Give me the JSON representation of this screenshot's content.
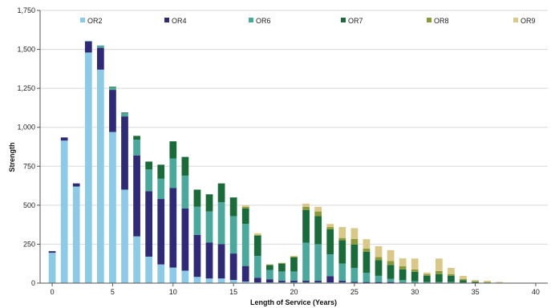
{
  "chart_data": {
    "type": "bar",
    "stacked": true,
    "xlabel": "Length of Service (Years)",
    "ylabel": "Strength",
    "ylim": [
      0,
      1750
    ],
    "xlim": [
      -1,
      41
    ],
    "x_ticks": [
      0,
      5,
      10,
      15,
      20,
      25,
      30,
      35,
      40
    ],
    "y_ticks": [
      0,
      250,
      500,
      750,
      1000,
      1250,
      1500,
      1750
    ],
    "y_tick_labels": [
      "0",
      "250",
      "500",
      "750",
      "1,000",
      "1,250",
      "1,500",
      "1,750"
    ],
    "grid": true,
    "legend_position": "top",
    "categories": [
      0,
      1,
      2,
      3,
      4,
      5,
      6,
      7,
      8,
      9,
      10,
      11,
      12,
      13,
      14,
      15,
      16,
      17,
      18,
      19,
      20,
      21,
      22,
      23,
      24,
      25,
      26,
      27,
      28,
      29,
      30,
      31,
      32,
      33,
      34,
      35,
      36,
      37,
      38,
      39,
      40
    ],
    "series": [
      {
        "name": "OR2",
        "color": "#8ccbe8",
        "values": [
          195,
          915,
          620,
          1480,
          1370,
          970,
          600,
          300,
          170,
          120,
          100,
          80,
          40,
          30,
          30,
          20,
          10,
          5,
          5,
          5,
          5,
          5,
          5,
          5,
          5,
          3,
          2,
          2,
          2,
          1,
          1,
          1,
          1,
          1,
          0,
          0,
          0,
          0,
          0,
          0,
          0
        ]
      },
      {
        "name": "OR4",
        "color": "#2e2a78",
        "values": [
          10,
          20,
          20,
          70,
          140,
          270,
          470,
          520,
          420,
          420,
          510,
          400,
          270,
          230,
          220,
          170,
          100,
          30,
          20,
          10,
          10,
          10,
          10,
          40,
          10,
          5,
          5,
          5,
          5,
          3,
          2,
          2,
          2,
          2,
          1,
          1,
          0,
          0,
          0,
          0,
          0
        ]
      },
      {
        "name": "OR6",
        "color": "#4aa89c",
        "values": [
          0,
          0,
          0,
          5,
          15,
          15,
          20,
          100,
          140,
          130,
          190,
          210,
          180,
          200,
          270,
          240,
          270,
          140,
          60,
          60,
          60,
          245,
          235,
          140,
          110,
          90,
          60,
          40,
          20,
          15,
          10,
          5,
          5,
          5,
          3,
          2,
          1,
          0,
          0,
          0,
          0
        ]
      },
      {
        "name": "OR7",
        "color": "#1a6b3a",
        "values": [
          0,
          0,
          0,
          0,
          0,
          5,
          5,
          25,
          50,
          90,
          110,
          120,
          110,
          110,
          120,
          120,
          100,
          130,
          30,
          50,
          90,
          210,
          180,
          160,
          150,
          150,
          135,
          100,
          90,
          70,
          60,
          40,
          50,
          40,
          15,
          5,
          3,
          2,
          0,
          0,
          0
        ]
      },
      {
        "name": "OR8",
        "color": "#8a9a3a",
        "values": [
          0,
          0,
          0,
          0,
          0,
          0,
          0,
          0,
          0,
          0,
          0,
          0,
          0,
          0,
          0,
          0,
          10,
          5,
          5,
          5,
          5,
          20,
          30,
          15,
          15,
          35,
          20,
          20,
          25,
          20,
          15,
          10,
          20,
          10,
          8,
          4,
          3,
          1,
          0,
          0,
          0
        ]
      },
      {
        "name": "OR9",
        "color": "#d9c888",
        "values": [
          0,
          0,
          0,
          0,
          0,
          0,
          0,
          0,
          0,
          0,
          0,
          0,
          0,
          0,
          0,
          0,
          10,
          10,
          0,
          0,
          5,
          20,
          30,
          20,
          70,
          70,
          60,
          70,
          70,
          50,
          70,
          10,
          80,
          40,
          20,
          8,
          8,
          5,
          2,
          0,
          0
        ]
      }
    ]
  }
}
